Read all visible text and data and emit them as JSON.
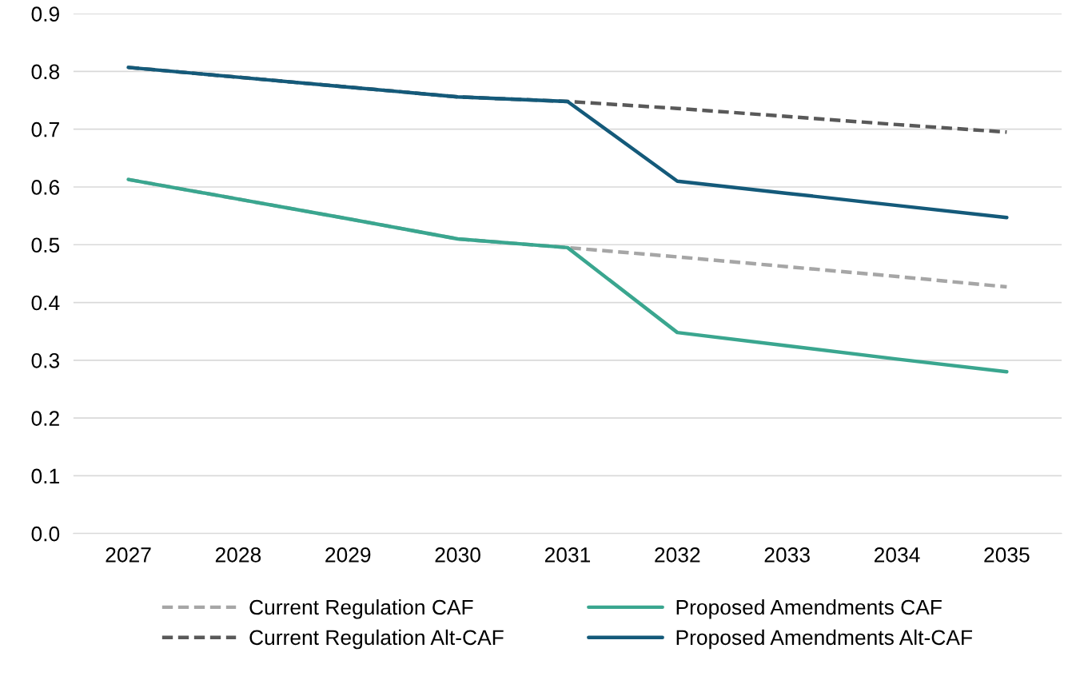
{
  "chart_data": {
    "type": "line",
    "categories": [
      "2027",
      "2028",
      "2029",
      "2030",
      "2031",
      "2032",
      "2033",
      "2034",
      "2035"
    ],
    "series": [
      {
        "name": "Current Regulation CAF",
        "color": "#a6a6a6",
        "line_style": "dashed",
        "values": [
          0.613,
          0.579,
          0.545,
          0.51,
          0.495,
          0.479,
          0.462,
          0.445,
          0.427
        ]
      },
      {
        "name": "Current Regulation Alt-CAF",
        "color": "#595959",
        "line_style": "dashed",
        "values": [
          0.807,
          0.79,
          0.773,
          0.756,
          0.748,
          0.736,
          0.722,
          0.708,
          0.695
        ]
      },
      {
        "name": "Proposed Amendments CAF",
        "color": "#3aa68f",
        "line_style": "solid",
        "values": [
          0.613,
          0.579,
          0.545,
          0.51,
          0.495,
          0.348,
          0.325,
          0.302,
          0.28
        ]
      },
      {
        "name": "Proposed Amendments Alt-CAF",
        "color": "#145a7a",
        "line_style": "solid",
        "values": [
          0.807,
          0.79,
          0.773,
          0.756,
          0.748,
          0.61,
          0.589,
          0.568,
          0.547
        ]
      }
    ],
    "ylim": [
      0,
      0.9
    ],
    "yticks": [
      {
        "value": 0,
        "label": "0.0"
      },
      0.1,
      0.2,
      0.3,
      0.4,
      0.5,
      0.6,
      0.7,
      0.8,
      0.9
    ],
    "grid": "y",
    "legend": "bottom",
    "marker": "none"
  }
}
